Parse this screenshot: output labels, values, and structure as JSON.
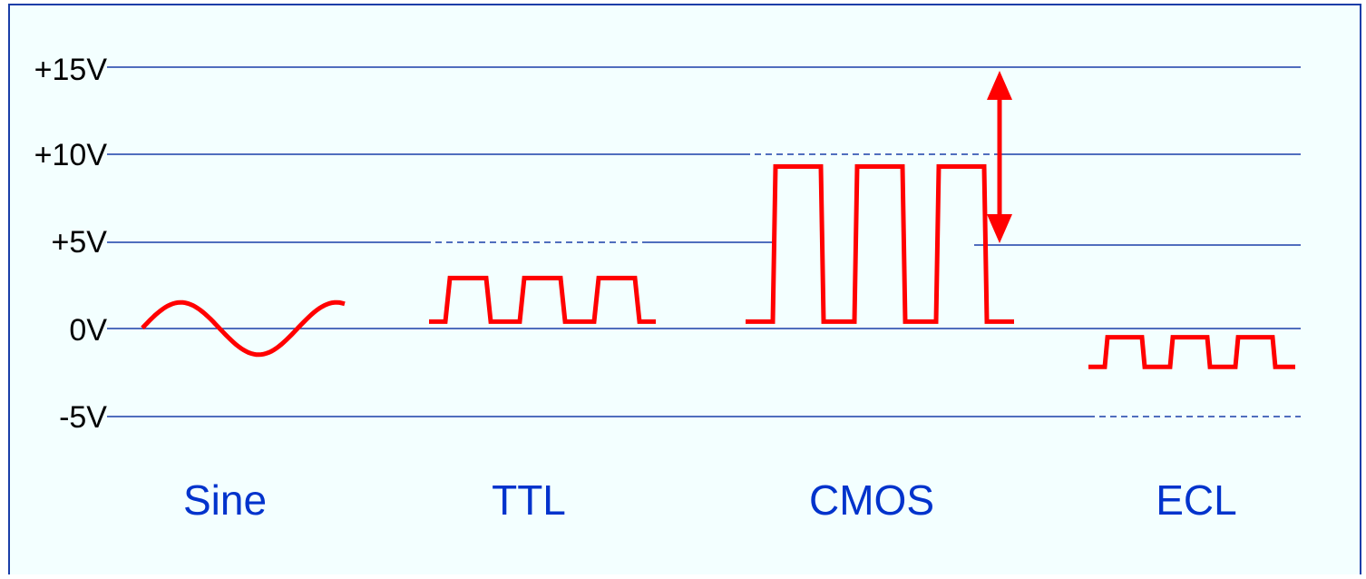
{
  "y_axis": {
    "ticks": [
      {
        "value": 15,
        "label": "+15V"
      },
      {
        "value": 10,
        "label": "+10V"
      },
      {
        "value": 5,
        "label": "+5V"
      },
      {
        "value": 0,
        "label": "0V"
      },
      {
        "value": -5,
        "label": "-5V"
      }
    ]
  },
  "signals": [
    {
      "name": "Sine",
      "shape": "sine",
      "low_v": -1.5,
      "high_v": 1.5
    },
    {
      "name": "TTL",
      "shape": "square",
      "low_v": 0.4,
      "high_v": 2.9
    },
    {
      "name": "CMOS",
      "shape": "square",
      "low_v": 0.4,
      "high_v": 9.3
    },
    {
      "name": "ECL",
      "shape": "square",
      "low_v": -2.2,
      "high_v": -0.5
    }
  ],
  "annotation": {
    "type": "double-arrow",
    "from_v": 5,
    "to_v": 15
  },
  "colors": {
    "background": "#f3ffff",
    "border": "#1a3ea8",
    "grid": "#1a3ea8",
    "signal": "#ff0000",
    "label": "#0033cc",
    "axis_text": "#000000"
  }
}
